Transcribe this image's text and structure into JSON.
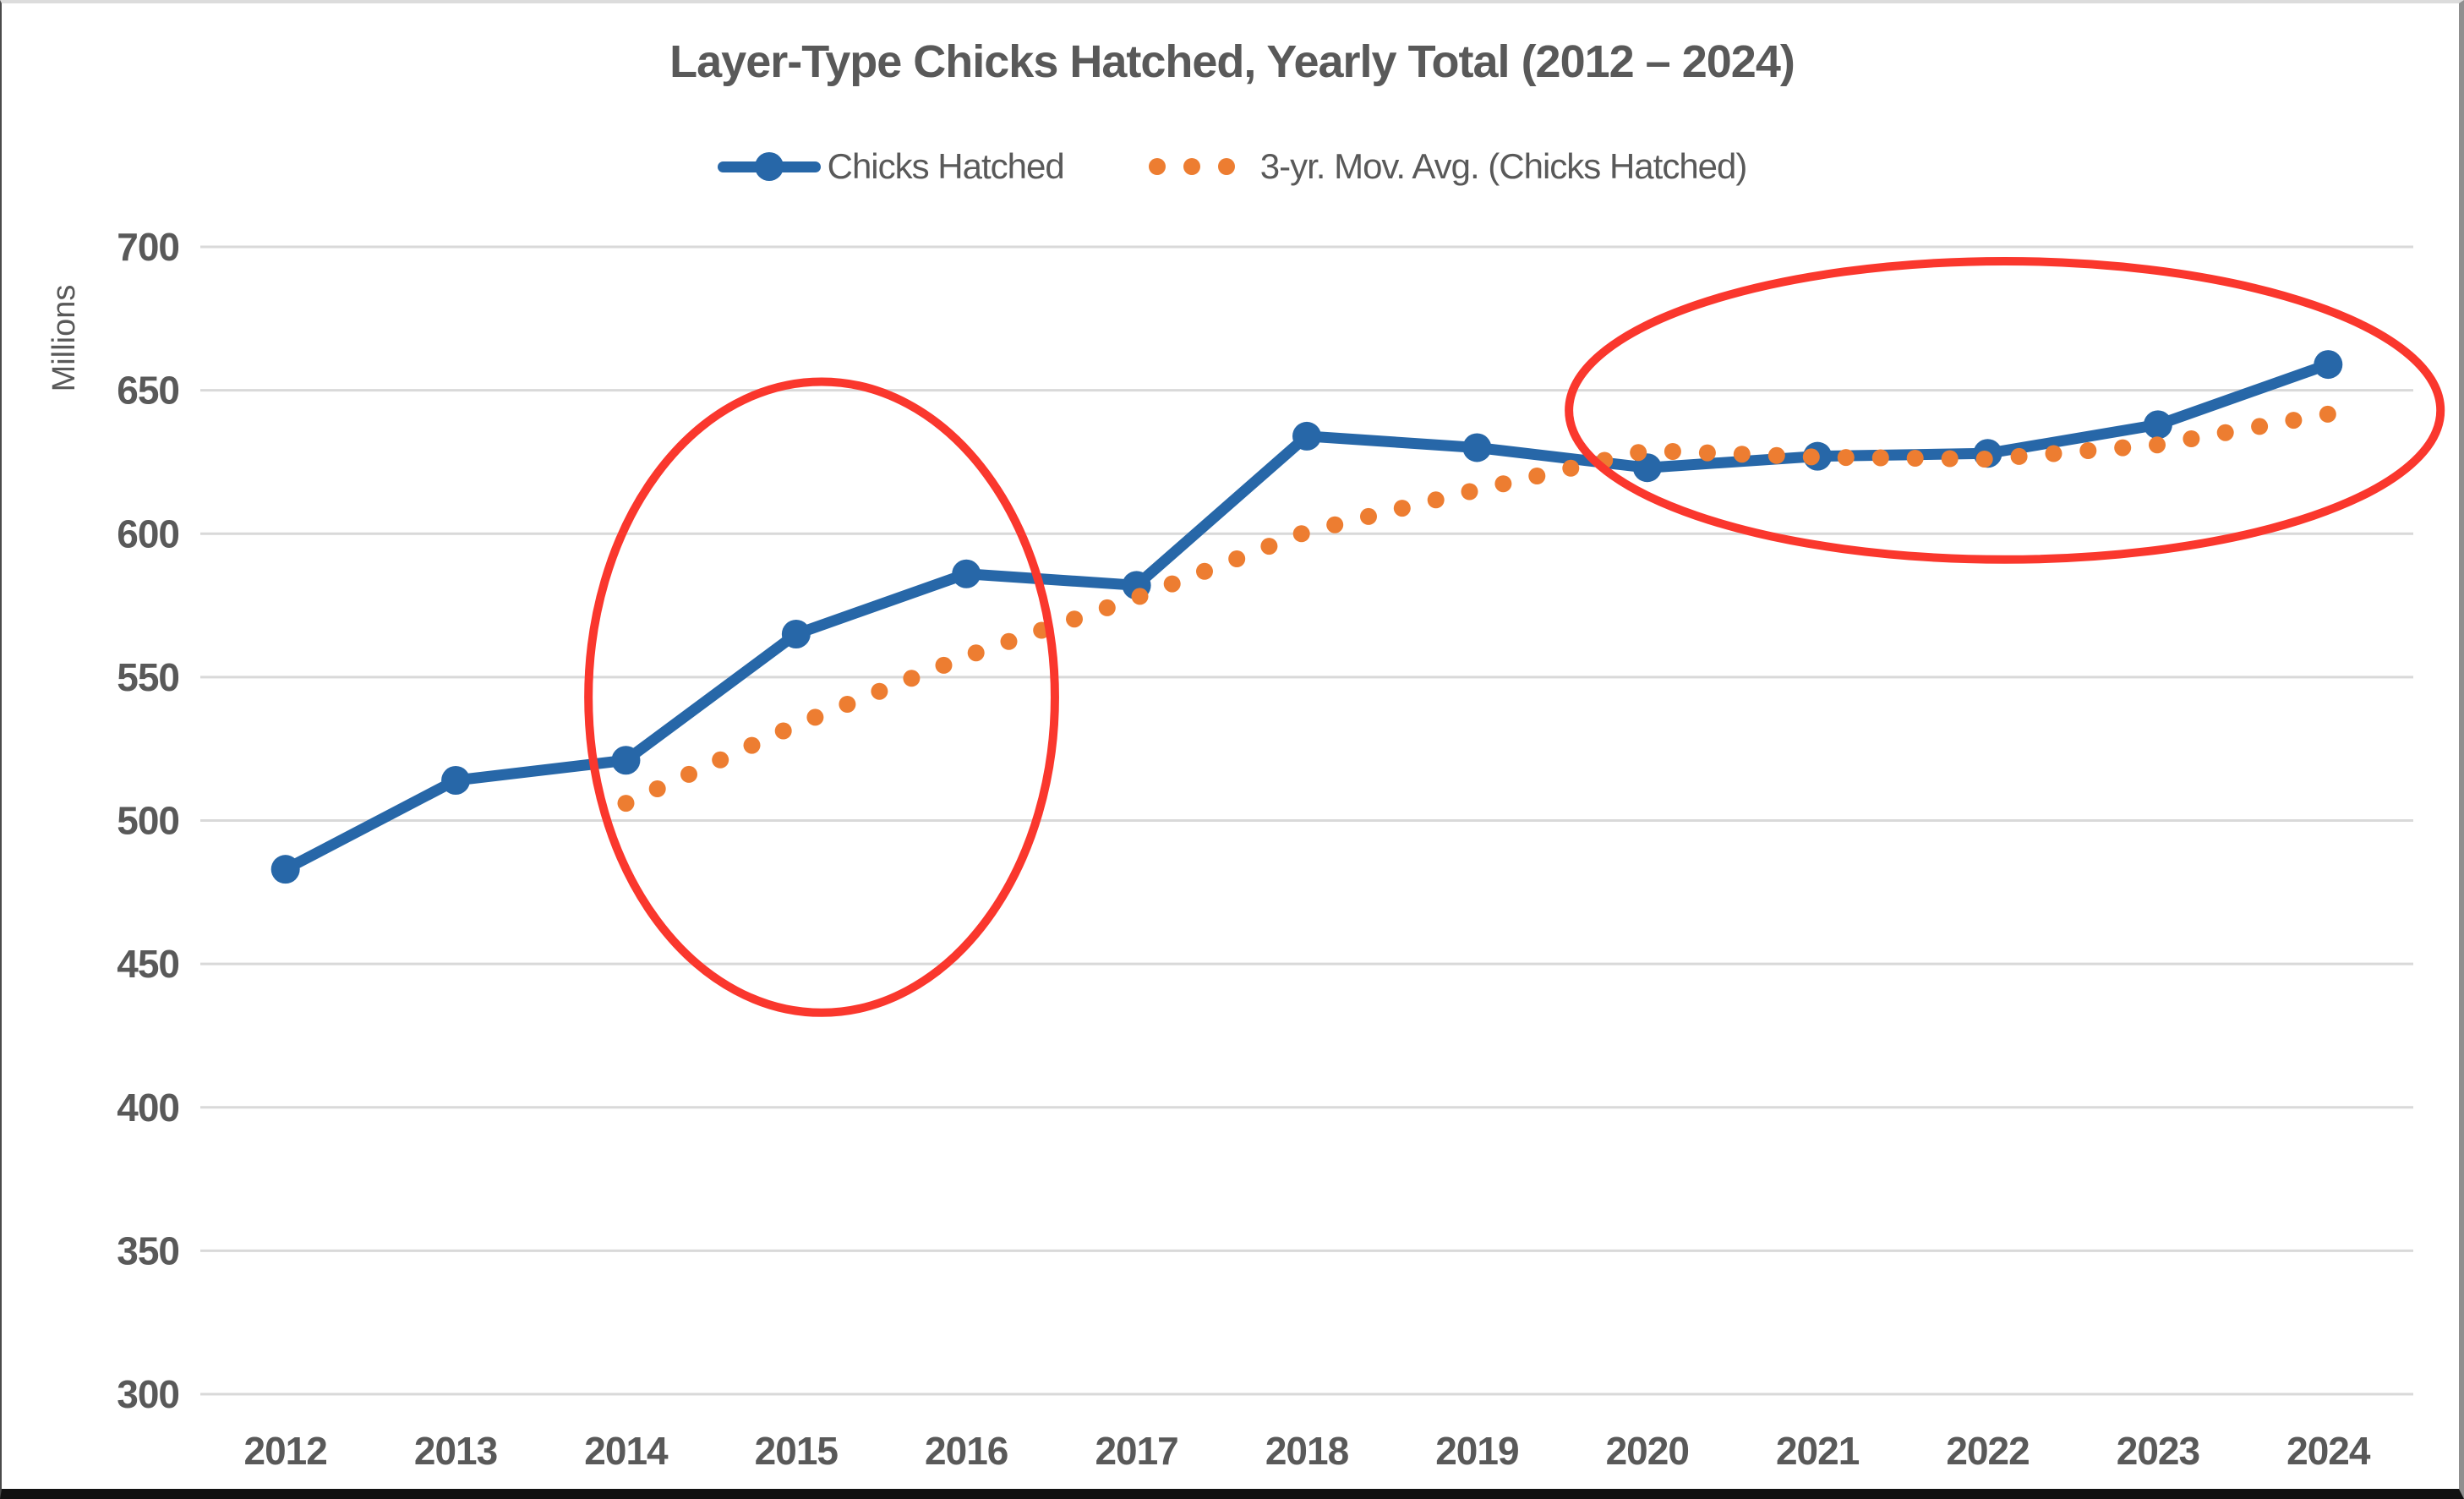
{
  "chart_data": {
    "type": "line",
    "title": "Layer-Type Chicks Hatched, Yearly Total (2012 – 2024)",
    "ylabel": "Millions",
    "xlabel": "",
    "categories": [
      2012,
      2013,
      2014,
      2015,
      2016,
      2017,
      2018,
      2019,
      2020,
      2021,
      2022,
      2023,
      2024
    ],
    "series": [
      {
        "name": "Chicks Hatched",
        "type": "line-with-markers",
        "color": "#2767A8",
        "values": [
          483,
          514,
          521,
          565,
          586,
          582,
          634,
          630,
          623,
          627,
          628,
          638,
          659
        ]
      },
      {
        "name": "3-yr. Mov. Avg. (Chicks Hatched)",
        "type": "dotted-line",
        "color": "#ED7D31",
        "values": [
          null,
          null,
          506.0,
          533.3,
          557.3,
          577.7,
          600.7,
          615.3,
          629.0,
          626.7,
          626.0,
          631.0,
          641.7
        ]
      }
    ],
    "ylim": [
      300,
      700
    ],
    "ytick_step": 50,
    "grid": "horizontal",
    "grid_color": "#D9D9D9",
    "axis_text_color": "#595959",
    "legend_position": "top",
    "annotations": [
      {
        "shape": "ellipse",
        "color": "#FA372D",
        "x_year": 2015.15,
        "y_value": 543,
        "rx_years": 1.37,
        "ry_values": 110
      },
      {
        "shape": "ellipse",
        "color": "#FA372D",
        "x_year": 2022.1,
        "y_value": 643,
        "rx_years": 2.56,
        "ry_values": 52
      }
    ]
  }
}
